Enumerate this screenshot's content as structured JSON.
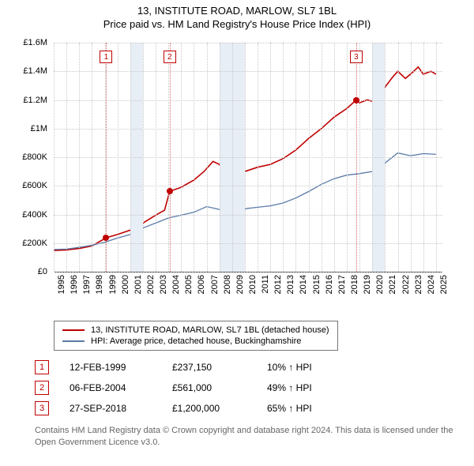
{
  "title": {
    "line1": "13, INSTITUTE ROAD, MARLOW, SL7 1BL",
    "line2": "Price paid vs. HM Land Registry's House Price Index (HPI)"
  },
  "chart": {
    "type": "line",
    "background_color": "#ffffff",
    "grid_color": "#c8c8c8",
    "x": {
      "min": 1995,
      "max": 2025.5,
      "ticks": [
        1995,
        1996,
        1997,
        1998,
        1999,
        2000,
        2001,
        2002,
        2003,
        2004,
        2005,
        2006,
        2007,
        2008,
        2009,
        2010,
        2011,
        2012,
        2013,
        2014,
        2015,
        2016,
        2017,
        2018,
        2019,
        2020,
        2021,
        2022,
        2023,
        2024,
        2025
      ]
    },
    "y": {
      "min": 0,
      "max": 1600000,
      "ticks": [
        0,
        200000,
        400000,
        600000,
        800000,
        1000000,
        1200000,
        1400000,
        1600000
      ],
      "tick_labels": [
        "£0",
        "£200K",
        "£400K",
        "£600K",
        "£800K",
        "£1M",
        "£1.2M",
        "£1.4M",
        "£1.6M"
      ]
    },
    "shaded_bands": [
      {
        "from": 2001,
        "to": 2002,
        "color": "#e8eef6"
      },
      {
        "from": 2008,
        "to": 2010,
        "color": "#e8eef6"
      },
      {
        "from": 2020,
        "to": 2021,
        "color": "#e8eef6"
      }
    ],
    "sale_markers": [
      {
        "num": "1",
        "x": 1999.12,
        "badge_y": 1500000,
        "dot_y": 237150,
        "line_color": "#d46a6a",
        "border_color": "#c00000",
        "dot_color": "#c00000"
      },
      {
        "num": "2",
        "x": 2004.1,
        "badge_y": 1500000,
        "dot_y": 561000,
        "line_color": "#d46a6a",
        "border_color": "#c00000",
        "dot_color": "#c00000"
      },
      {
        "num": "3",
        "x": 2018.74,
        "badge_y": 1500000,
        "dot_y": 1200000,
        "line_color": "#d46a6a",
        "border_color": "#c00000",
        "dot_color": "#c00000"
      }
    ],
    "series": [
      {
        "name": "13, INSTITUTE ROAD, MARLOW, SL7 1BL (detached house)",
        "color": "#c00000",
        "width": 1.6,
        "points": [
          [
            1995,
            148000
          ],
          [
            1996,
            152000
          ],
          [
            1997,
            162000
          ],
          [
            1998,
            180000
          ],
          [
            1999.12,
            237150
          ],
          [
            2000,
            260000
          ],
          [
            2001,
            290000
          ],
          [
            2002,
            340000
          ],
          [
            2003,
            395000
          ],
          [
            2003.7,
            430000
          ],
          [
            2004.1,
            561000
          ],
          [
            2005,
            590000
          ],
          [
            2006,
            640000
          ],
          [
            2006.8,
            700000
          ],
          [
            2007.5,
            770000
          ],
          [
            2008,
            750000
          ],
          [
            2008.7,
            640000
          ],
          [
            2009,
            600000
          ],
          [
            2009.7,
            680000
          ],
          [
            2010,
            700000
          ],
          [
            2011,
            730000
          ],
          [
            2012,
            750000
          ],
          [
            2013,
            790000
          ],
          [
            2014,
            850000
          ],
          [
            2015,
            930000
          ],
          [
            2016,
            1000000
          ],
          [
            2017,
            1080000
          ],
          [
            2018,
            1140000
          ],
          [
            2018.74,
            1200000
          ],
          [
            2019,
            1180000
          ],
          [
            2019.6,
            1200000
          ],
          [
            2020,
            1190000
          ],
          [
            2020.7,
            1240000
          ],
          [
            2021,
            1290000
          ],
          [
            2021.6,
            1360000
          ],
          [
            2022,
            1400000
          ],
          [
            2022.6,
            1350000
          ],
          [
            2023,
            1380000
          ],
          [
            2023.6,
            1430000
          ],
          [
            2024,
            1380000
          ],
          [
            2024.6,
            1400000
          ],
          [
            2025,
            1380000
          ]
        ]
      },
      {
        "name": "HPI: Average price, detached house, Buckinghamshire",
        "color": "#5b7ba8",
        "width": 1.3,
        "points": [
          [
            1995,
            155000
          ],
          [
            1996,
            158000
          ],
          [
            1997,
            170000
          ],
          [
            1998,
            185000
          ],
          [
            1999,
            205000
          ],
          [
            2000,
            235000
          ],
          [
            2001,
            260000
          ],
          [
            2002,
            305000
          ],
          [
            2003,
            340000
          ],
          [
            2004,
            375000
          ],
          [
            2005,
            395000
          ],
          [
            2006,
            415000
          ],
          [
            2007,
            455000
          ],
          [
            2008,
            435000
          ],
          [
            2009,
            395000
          ],
          [
            2010,
            440000
          ],
          [
            2011,
            450000
          ],
          [
            2012,
            460000
          ],
          [
            2013,
            480000
          ],
          [
            2014,
            515000
          ],
          [
            2015,
            560000
          ],
          [
            2016,
            610000
          ],
          [
            2017,
            650000
          ],
          [
            2018,
            675000
          ],
          [
            2019,
            685000
          ],
          [
            2020,
            700000
          ],
          [
            2021,
            760000
          ],
          [
            2022,
            830000
          ],
          [
            2023,
            810000
          ],
          [
            2024,
            825000
          ],
          [
            2025,
            820000
          ]
        ]
      }
    ]
  },
  "legend": [
    {
      "color": "#c00000",
      "label": "13, INSTITUTE ROAD, MARLOW, SL7 1BL (detached house)"
    },
    {
      "color": "#5b7ba8",
      "label": "HPI: Average price, detached house, Buckinghamshire"
    }
  ],
  "sales": [
    {
      "num": "1",
      "border_color": "#c00000",
      "date": "12-FEB-1999",
      "price": "£237,150",
      "pct": "10% ↑ HPI"
    },
    {
      "num": "2",
      "border_color": "#c00000",
      "date": "06-FEB-2004",
      "price": "£561,000",
      "pct": "49% ↑ HPI"
    },
    {
      "num": "3",
      "border_color": "#c00000",
      "date": "27-SEP-2018",
      "price": "£1,200,000",
      "pct": "65% ↑ HPI"
    }
  ],
  "attribution": "Contains HM Land Registry data © Crown copyright and database right 2024. This data is licensed under the Open Government Licence v3.0."
}
